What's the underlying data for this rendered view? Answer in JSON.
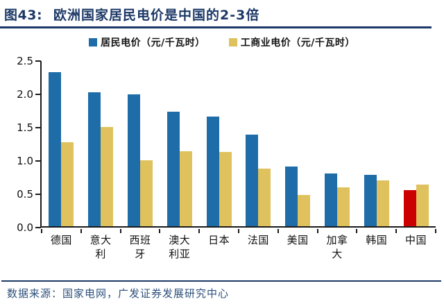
{
  "header": {
    "figure_label": "图43:",
    "title": "欧洲国家居民电价是中国的2-3倍"
  },
  "legend": {
    "residential_label": "居民电价（元/千瓦时）",
    "commercial_label": "工商业电价（元/千瓦时）"
  },
  "source": {
    "text": "数据来源：国家电网，广发证券发展研究中心"
  },
  "colors": {
    "residential_blue": "#1E6CA8",
    "commercial_yellow": "#DFC25E",
    "china_highlight_red": "#CC0000",
    "title_navy": "#1C3866",
    "source_navy": "#2C4F7C",
    "axis_black": "#1a1a1a"
  },
  "chart_data": {
    "type": "bar",
    "title": "图43: 欧洲国家居民电价是中国的2-3倍",
    "categories": [
      "德国",
      "意大利",
      "西班牙",
      "澳大利亚",
      "日本",
      "法国",
      "美国",
      "加拿大",
      "韩国",
      "中国"
    ],
    "series": [
      {
        "name": "居民电价（元/千瓦时）",
        "color": "#1E6CA8",
        "values": [
          2.31,
          2.01,
          1.98,
          1.72,
          1.65,
          1.38,
          0.9,
          0.79,
          0.77,
          0.54
        ]
      },
      {
        "name": "工商业电价（元/千瓦时）",
        "color": "#DFC25E",
        "values": [
          1.26,
          1.49,
          0.99,
          1.13,
          1.11,
          0.86,
          0.47,
          0.58,
          0.69,
          0.63
        ]
      }
    ],
    "highlight": {
      "category": "中国",
      "series_index": 0,
      "color": "#CC0000"
    },
    "xlabel": "",
    "ylabel": "",
    "ylim": [
      0,
      2.5
    ],
    "yticks": [
      "0.0",
      "0.5",
      "1.0",
      "1.5",
      "2.0",
      "2.5"
    ],
    "grid": false,
    "legend_position": "top"
  }
}
